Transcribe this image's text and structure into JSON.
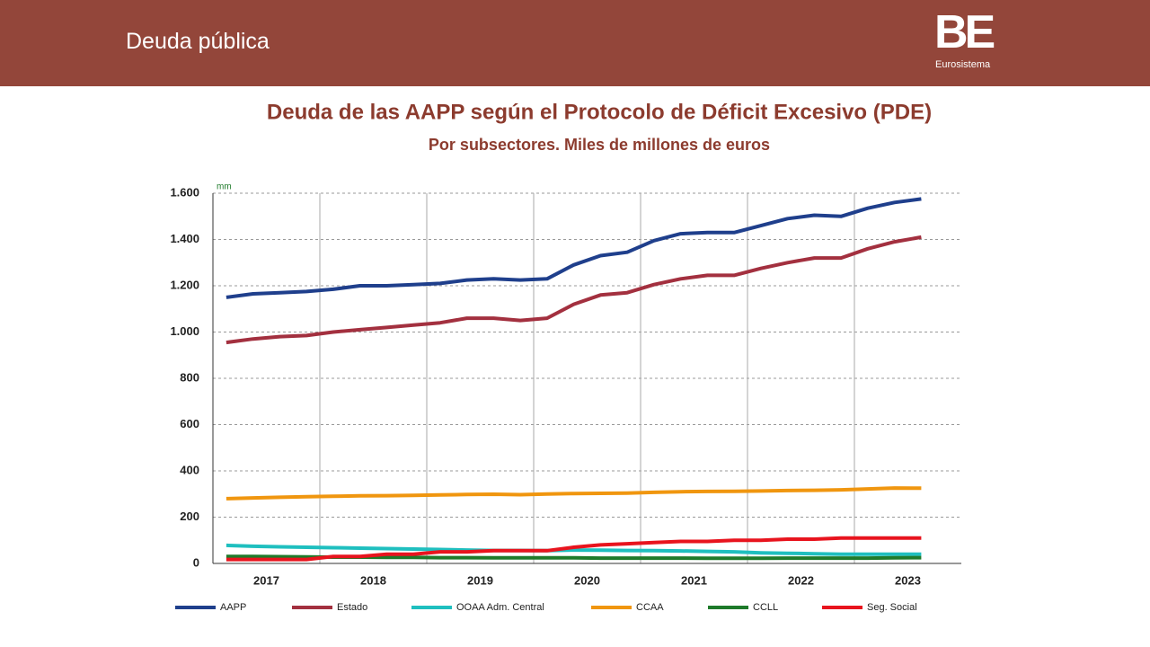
{
  "header": {
    "title": "Deuda pública",
    "logo": "BE",
    "logo_subtitle": "Eurosistema"
  },
  "chart_data": {
    "type": "line",
    "title": "Deuda de las AAPP según el Protocolo de Déficit Excesivo (PDE)",
    "subtitle": "Por subsectores. Miles de millones de euros",
    "y_unit_label": "mm",
    "categories": [
      "2017",
      null,
      null,
      null,
      "2018",
      null,
      null,
      null,
      "2019",
      null,
      null,
      null,
      "2020",
      null,
      null,
      null,
      "2021",
      null,
      null,
      null,
      "2022",
      null,
      null,
      null,
      "2023",
      null,
      null
    ],
    "ylim": [
      0,
      1600
    ],
    "yticks": [
      0,
      200,
      400,
      600,
      800,
      {
        "value": 1000,
        "label": "1.000"
      },
      {
        "value": 1200,
        "label": "1.200"
      },
      {
        "value": 1400,
        "label": "1.400"
      },
      {
        "value": 1600,
        "label": "1.600"
      }
    ],
    "grid": true,
    "series": [
      {
        "name": "AAPP",
        "color": "#1f3f8c",
        "values": [
          1150,
          1165,
          1170,
          1175,
          1185,
          1200,
          1200,
          1205,
          1210,
          1225,
          1230,
          1225,
          1230,
          1290,
          1330,
          1345,
          1395,
          1425,
          1430,
          1430,
          1460,
          1490,
          1505,
          1500,
          1535,
          1560,
          1575
        ]
      },
      {
        "name": "Estado",
        "color": "#a3303f",
        "values": [
          955,
          970,
          980,
          985,
          1000,
          1010,
          1020,
          1030,
          1040,
          1060,
          1060,
          1050,
          1060,
          1120,
          1160,
          1170,
          1205,
          1230,
          1245,
          1245,
          1275,
          1300,
          1320,
          1320,
          1360,
          1390,
          1410
        ]
      },
      {
        "name": "OOAA Adm. Central",
        "color": "#1fbfbf",
        "values": [
          78,
          74,
          72,
          70,
          68,
          66,
          64,
          62,
          60,
          58,
          56,
          56,
          55,
          58,
          57,
          56,
          55,
          54,
          52,
          50,
          46,
          44,
          42,
          40,
          40,
          40,
          40
        ]
      },
      {
        "name": "CCAA",
        "color": "#f0960f",
        "values": [
          280,
          283,
          286,
          288,
          290,
          292,
          293,
          294,
          296,
          298,
          299,
          297,
          300,
          302,
          303,
          304,
          307,
          310,
          311,
          312,
          313,
          315,
          316,
          318,
          322,
          326,
          325
        ]
      },
      {
        "name": "CCLL",
        "color": "#1e7a2a",
        "values": [
          30,
          30,
          29,
          28,
          27,
          27,
          26,
          26,
          25,
          25,
          24,
          24,
          24,
          24,
          23,
          23,
          23,
          23,
          22,
          22,
          22,
          23,
          23,
          23,
          23,
          24,
          25
        ]
      },
      {
        "name": "Seg. Social",
        "color": "#e8141e",
        "values": [
          17,
          17,
          17,
          17,
          30,
          30,
          40,
          40,
          50,
          50,
          55,
          55,
          55,
          70,
          80,
          85,
          90,
          95,
          95,
          100,
          100,
          105,
          105,
          110,
          110,
          110,
          110
        ]
      }
    ]
  }
}
